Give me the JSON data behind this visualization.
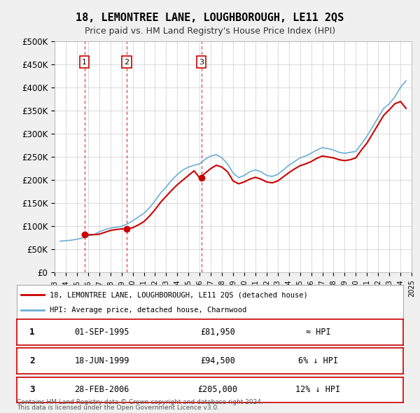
{
  "title": "18, LEMONTREE LANE, LOUGHBOROUGH, LE11 2QS",
  "subtitle": "Price paid vs. HM Land Registry's House Price Index (HPI)",
  "legend_line1": "18, LEMONTREE LANE, LOUGHBOROUGH, LE11 2QS (detached house)",
  "legend_line2": "HPI: Average price, detached house, Charnwood",
  "footer1": "Contains HM Land Registry data © Crown copyright and database right 2024.",
  "footer2": "This data is licensed under the Open Government Licence v3.0.",
  "price_paid_color": "#cc0000",
  "hpi_color": "#6baed6",
  "background_color": "#f0f0f0",
  "plot_bg_color": "#ffffff",
  "grid_color": "#cccccc",
  "sale_dates": [
    "1995-09-01",
    "1999-06-18",
    "2006-02-28"
  ],
  "sale_prices": [
    81950,
    94500,
    205000
  ],
  "sale_labels": [
    "1",
    "2",
    "3"
  ],
  "sale_table": [
    [
      "1",
      "01-SEP-1995",
      "£81,950",
      "≈ HPI"
    ],
    [
      "2",
      "18-JUN-1999",
      "£94,500",
      "6% ↓ HPI"
    ],
    [
      "3",
      "28-FEB-2006",
      "£205,000",
      "12% ↓ HPI"
    ]
  ],
  "ylim": [
    0,
    500000
  ],
  "yticks": [
    0,
    50000,
    100000,
    150000,
    200000,
    250000,
    300000,
    350000,
    400000,
    450000,
    500000
  ],
  "ytick_labels": [
    "£0",
    "£50K",
    "£100K",
    "£150K",
    "£200K",
    "£250K",
    "£300K",
    "£350K",
    "£400K",
    "£450K",
    "£500K"
  ],
  "hpi_data": {
    "dates": [
      1993.5,
      1994.0,
      1994.5,
      1995.0,
      1995.5,
      1996.0,
      1996.5,
      1997.0,
      1997.5,
      1998.0,
      1998.5,
      1999.0,
      1999.5,
      2000.0,
      2000.5,
      2001.0,
      2001.5,
      2002.0,
      2002.5,
      2003.0,
      2003.5,
      2004.0,
      2004.5,
      2005.0,
      2005.5,
      2006.0,
      2006.5,
      2007.0,
      2007.5,
      2008.0,
      2008.5,
      2009.0,
      2009.5,
      2010.0,
      2010.5,
      2011.0,
      2011.5,
      2012.0,
      2012.5,
      2013.0,
      2013.5,
      2014.0,
      2014.5,
      2015.0,
      2015.5,
      2016.0,
      2016.5,
      2017.0,
      2017.5,
      2018.0,
      2018.5,
      2019.0,
      2019.5,
      2020.0,
      2020.5,
      2021.0,
      2021.5,
      2022.0,
      2022.5,
      2023.0,
      2023.5,
      2024.0,
      2024.5
    ],
    "values": [
      68000,
      69000,
      70000,
      72000,
      75000,
      79000,
      82000,
      88000,
      93000,
      96000,
      98000,
      100000,
      105000,
      112000,
      120000,
      128000,
      140000,
      155000,
      172000,
      185000,
      200000,
      212000,
      222000,
      228000,
      232000,
      235000,
      245000,
      252000,
      255000,
      248000,
      235000,
      215000,
      205000,
      210000,
      218000,
      222000,
      218000,
      210000,
      208000,
      212000,
      222000,
      232000,
      240000,
      248000,
      252000,
      258000,
      265000,
      270000,
      268000,
      265000,
      260000,
      258000,
      260000,
      262000,
      278000,
      295000,
      315000,
      335000,
      355000,
      365000,
      380000,
      400000,
      415000
    ]
  },
  "pp_data": {
    "dates": [
      1993.5,
      1994.0,
      1994.5,
      1995.0,
      1995.5,
      1996.0,
      1996.5,
      1997.0,
      1997.5,
      1998.0,
      1998.5,
      1999.0,
      1999.5,
      2000.0,
      2000.5,
      2001.0,
      2001.5,
      2002.0,
      2002.5,
      2003.0,
      2003.5,
      2004.0,
      2004.5,
      2005.0,
      2005.5,
      2006.0,
      2006.5,
      2007.0,
      2007.5,
      2008.0,
      2008.5,
      2009.0,
      2009.5,
      2010.0,
      2010.5,
      2011.0,
      2011.5,
      2012.0,
      2012.5,
      2013.0,
      2013.5,
      2014.0,
      2014.5,
      2015.0,
      2015.5,
      2016.0,
      2016.5,
      2017.0,
      2017.5,
      2018.0,
      2018.5,
      2019.0,
      2019.5,
      2020.0,
      2020.5,
      2021.0,
      2021.5,
      2022.0,
      2022.5,
      2023.0,
      2023.5,
      2024.0,
      2024.5
    ],
    "values": [
      null,
      null,
      null,
      null,
      81950,
      81950,
      81950,
      83000,
      87000,
      91000,
      93000,
      94500,
      94500,
      97000,
      103000,
      110000,
      122000,
      136000,
      152000,
      165000,
      178000,
      190000,
      200000,
      210000,
      220000,
      205000,
      215000,
      225000,
      232000,
      228000,
      218000,
      198000,
      192000,
      196000,
      202000,
      206000,
      202000,
      196000,
      194000,
      198000,
      207000,
      216000,
      224000,
      231000,
      235000,
      240000,
      247000,
      252000,
      250000,
      248000,
      244000,
      242000,
      244000,
      248000,
      265000,
      280000,
      300000,
      320000,
      340000,
      352000,
      365000,
      370000,
      355000
    ]
  }
}
